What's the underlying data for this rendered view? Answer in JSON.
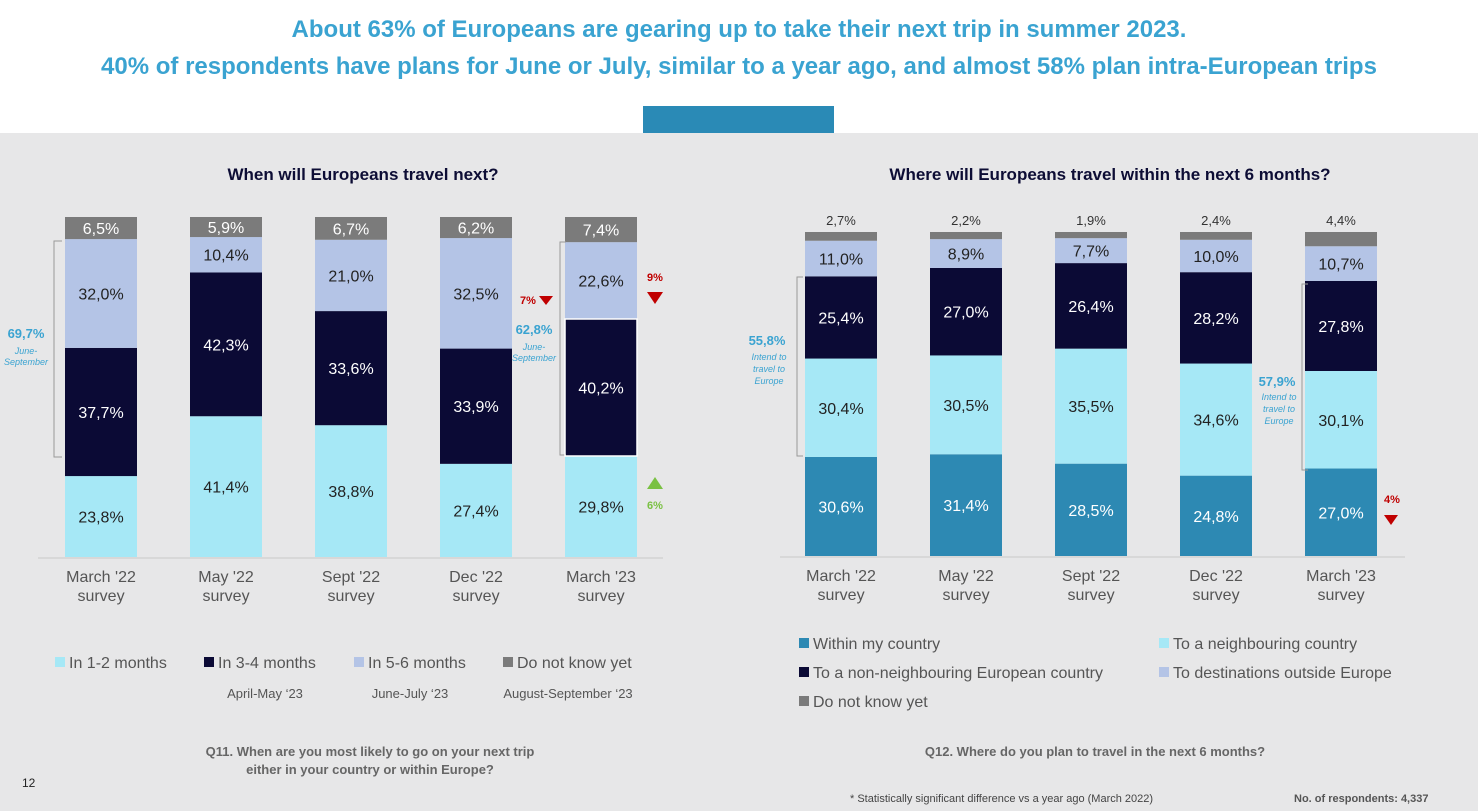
{
  "headline": {
    "line1": "About 63% of Europeans are gearing up to take their next trip in summer 2023.",
    "line2": "40% of respondents have plans for June or July, similar to a year ago, and almost 58% plan intra-European trips"
  },
  "page_number": "12",
  "footnote": "* Statistically significant difference vs a year ago (March 2022)",
  "respondents": "No. of respondents: 4,337",
  "colors": {
    "light_cyan": "#a6e8f6",
    "dark_navy": "#0b0a35",
    "lavender": "#b4c4e6",
    "gray": "#7b7b7b",
    "teal": "#2d89b3",
    "accent": "#3aa3d1",
    "down": "#c00000",
    "up": "#7ac143"
  },
  "left": {
    "question_line1": "Q11. When are you most likely to go on your next trip",
    "question_line2": "either in your country or within Europe?",
    "sub_labels": [
      "April-May ‘23",
      "June-July ‘23",
      "August-September ‘23"
    ],
    "annotations": {
      "first": {
        "value": "69,7%",
        "line1": "June-",
        "line2": "September"
      },
      "last": {
        "value": "62,8%",
        "line1": "June-",
        "line2": "September"
      },
      "change_7": "7%",
      "change_9": "9%",
      "change_6": "6%"
    }
  },
  "right": {
    "question": "Q12. Where do you plan to travel in the next 6 months?",
    "annotations": {
      "first": {
        "value": "55,8%",
        "line1": "Intend to",
        "line2": "travel to",
        "line3": "Europe"
      },
      "last": {
        "value": "57,9%",
        "line1": "Intend to",
        "line2": "travel to",
        "line3": "Europe"
      },
      "change_4": "4%"
    }
  },
  "chart_data": [
    {
      "type": "bar",
      "stacked": true,
      "title": "When will Europeans travel next?",
      "categories": [
        [
          "March '22",
          "survey"
        ],
        [
          "May '22",
          "survey"
        ],
        [
          "Sept '22",
          "survey"
        ],
        [
          "Dec '22",
          "survey"
        ],
        [
          "March '23",
          "survey"
        ]
      ],
      "series": [
        {
          "name": "In 1-2 months",
          "color": "#a6e8f6",
          "values": [
            23.8,
            41.4,
            38.8,
            27.4,
            29.8
          ],
          "labels": [
            "23,8%",
            "41,4%",
            "38,8%",
            "27,4%",
            "29,8%"
          ]
        },
        {
          "name": "In 3-4 months",
          "color": "#0b0a35",
          "values": [
            37.7,
            42.3,
            33.6,
            33.9,
            40.2
          ],
          "labels": [
            "37,7%",
            "42,3%",
            "33,6%",
            "33,9%",
            "40,2%"
          ]
        },
        {
          "name": "In 5-6 months",
          "color": "#b4c4e6",
          "values": [
            32.0,
            10.4,
            21.0,
            32.5,
            22.6
          ],
          "labels": [
            "32,0%",
            "10,4%",
            "21,0%",
            "32,5%",
            "22,6%"
          ]
        },
        {
          "name": "Do not know yet",
          "color": "#7b7b7b",
          "values": [
            6.5,
            5.9,
            6.7,
            6.2,
            7.4
          ],
          "labels": [
            "6,5%",
            "5,9%",
            "6,7%",
            "6,2%",
            "7,4%"
          ]
        }
      ],
      "legend_position": "bottom",
      "grid": false
    },
    {
      "type": "bar",
      "stacked": true,
      "title": "Where will Europeans travel within the next 6 months?",
      "categories": [
        [
          "March '22",
          "survey"
        ],
        [
          "May '22",
          "survey"
        ],
        [
          "Sept '22",
          "survey"
        ],
        [
          "Dec '22",
          "survey"
        ],
        [
          "March '23",
          "survey"
        ]
      ],
      "series": [
        {
          "name": "Within my country",
          "color": "#2d89b3",
          "values": [
            30.6,
            31.4,
            28.5,
            24.8,
            27.0
          ],
          "labels": [
            "30,6%",
            "31,4%",
            "28,5%",
            "24,8%",
            "27,0%"
          ]
        },
        {
          "name": "To a neighbouring country",
          "color": "#a6e8f6",
          "values": [
            30.4,
            30.5,
            35.5,
            34.6,
            30.1
          ],
          "labels": [
            "30,4%",
            "30,5%",
            "35,5%",
            "34,6%",
            "30,1%"
          ]
        },
        {
          "name": "To a non-neighbouring European country",
          "color": "#0b0a35",
          "values": [
            25.4,
            27.0,
            26.4,
            28.2,
            27.8
          ],
          "labels": [
            "25,4%",
            "27,0%",
            "26,4%",
            "28,2%",
            "27,8%"
          ]
        },
        {
          "name": "To destinations outside Europe",
          "color": "#b4c4e6",
          "values": [
            11.0,
            8.9,
            7.7,
            10.0,
            10.7
          ],
          "labels": [
            "11,0%",
            "8,9%",
            "7,7%",
            "10,0%",
            "10,7%"
          ]
        },
        {
          "name": "Do not know yet",
          "color": "#7b7b7b",
          "values": [
            2.7,
            2.2,
            1.9,
            2.4,
            4.4
          ],
          "labels": [
            "2,7%",
            "2,2%",
            "1,9%",
            "2,4%",
            "4,4%"
          ]
        }
      ],
      "legend_position": "bottom",
      "grid": false
    }
  ]
}
